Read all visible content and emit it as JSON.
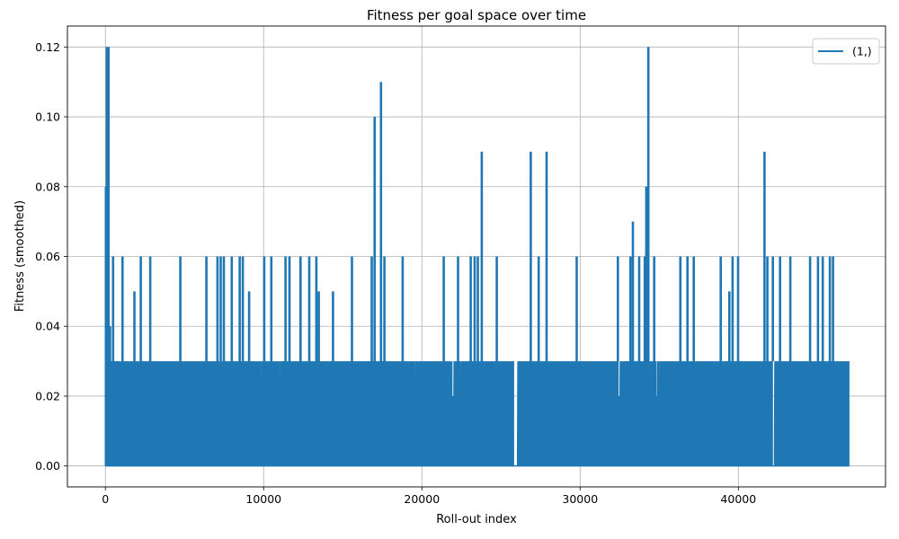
{
  "chart_data": {
    "type": "line",
    "title": "Fitness per goal space over time",
    "xlabel": "Roll-out index",
    "ylabel": "Fitness (smoothed)",
    "xlim": [
      -2400,
      49300
    ],
    "ylim": [
      -0.006,
      0.126
    ],
    "xticks": [
      0,
      10000,
      20000,
      30000,
      40000
    ],
    "xtick_labels": [
      "0",
      "10000",
      "20000",
      "30000",
      "40000"
    ],
    "yticks": [
      0.0,
      0.02,
      0.04,
      0.06,
      0.08,
      0.1,
      0.12
    ],
    "ytick_labels": [
      "0.00",
      "0.02",
      "0.04",
      "0.06",
      "0.08",
      "0.10",
      "0.12"
    ],
    "grid": true,
    "legend_position": "top-right",
    "series": [
      {
        "name": "(1,)",
        "color": "#1f77b4",
        "x_range": [
          0,
          47000
        ],
        "baseline": 0.0,
        "band_level": 0.03,
        "peaks": [
          {
            "x": 0,
            "y": 0.08
          },
          {
            "x": 60,
            "y": 0.12
          },
          {
            "x": 160,
            "y": 0.12
          },
          {
            "x": 260,
            "y": 0.04
          },
          {
            "x": 450,
            "y": 0.06
          },
          {
            "x": 1050,
            "y": 0.06
          },
          {
            "x": 1800,
            "y": 0.05
          },
          {
            "x": 2200,
            "y": 0.06
          },
          {
            "x": 2800,
            "y": 0.06
          },
          {
            "x": 4700,
            "y": 0.06
          },
          {
            "x": 6350,
            "y": 0.06
          },
          {
            "x": 7050,
            "y": 0.06
          },
          {
            "x": 7250,
            "y": 0.06
          },
          {
            "x": 7450,
            "y": 0.06
          },
          {
            "x": 7950,
            "y": 0.06
          },
          {
            "x": 8450,
            "y": 0.06
          },
          {
            "x": 8650,
            "y": 0.06
          },
          {
            "x": 9050,
            "y": 0.05
          },
          {
            "x": 10000,
            "y": 0.06
          },
          {
            "x": 10450,
            "y": 0.06
          },
          {
            "x": 11350,
            "y": 0.06
          },
          {
            "x": 11600,
            "y": 0.06
          },
          {
            "x": 12300,
            "y": 0.06
          },
          {
            "x": 12850,
            "y": 0.06
          },
          {
            "x": 13300,
            "y": 0.06
          },
          {
            "x": 13450,
            "y": 0.05
          },
          {
            "x": 14350,
            "y": 0.05
          },
          {
            "x": 15550,
            "y": 0.06
          },
          {
            "x": 16800,
            "y": 0.06
          },
          {
            "x": 16980,
            "y": 0.1
          },
          {
            "x": 17380,
            "y": 0.11
          },
          {
            "x": 17600,
            "y": 0.06
          },
          {
            "x": 18750,
            "y": 0.06
          },
          {
            "x": 21350,
            "y": 0.06
          },
          {
            "x": 22250,
            "y": 0.06
          },
          {
            "x": 23050,
            "y": 0.06
          },
          {
            "x": 23300,
            "y": 0.06
          },
          {
            "x": 23500,
            "y": 0.06
          },
          {
            "x": 23750,
            "y": 0.09
          },
          {
            "x": 24700,
            "y": 0.06
          },
          {
            "x": 26850,
            "y": 0.09
          },
          {
            "x": 27350,
            "y": 0.06
          },
          {
            "x": 27850,
            "y": 0.09
          },
          {
            "x": 29750,
            "y": 0.06
          },
          {
            "x": 32350,
            "y": 0.06
          },
          {
            "x": 33150,
            "y": 0.06
          },
          {
            "x": 33300,
            "y": 0.07
          },
          {
            "x": 33700,
            "y": 0.06
          },
          {
            "x": 34050,
            "y": 0.06
          },
          {
            "x": 34150,
            "y": 0.08
          },
          {
            "x": 34280,
            "y": 0.12
          },
          {
            "x": 34650,
            "y": 0.06
          },
          {
            "x": 36300,
            "y": 0.06
          },
          {
            "x": 36750,
            "y": 0.06
          },
          {
            "x": 37150,
            "y": 0.06
          },
          {
            "x": 38850,
            "y": 0.06
          },
          {
            "x": 39400,
            "y": 0.05
          },
          {
            "x": 39600,
            "y": 0.06
          },
          {
            "x": 39950,
            "y": 0.06
          },
          {
            "x": 41620,
            "y": 0.09
          },
          {
            "x": 41800,
            "y": 0.06
          },
          {
            "x": 42150,
            "y": 0.06
          },
          {
            "x": 42600,
            "y": 0.06
          },
          {
            "x": 43250,
            "y": 0.06
          },
          {
            "x": 44500,
            "y": 0.06
          },
          {
            "x": 45000,
            "y": 0.06
          },
          {
            "x": 45300,
            "y": 0.06
          },
          {
            "x": 45750,
            "y": 0.06
          },
          {
            "x": 45950,
            "y": 0.06
          }
        ],
        "gaps": [
          [
            25800,
            26050
          ],
          [
            42150,
            42300
          ]
        ]
      }
    ]
  }
}
